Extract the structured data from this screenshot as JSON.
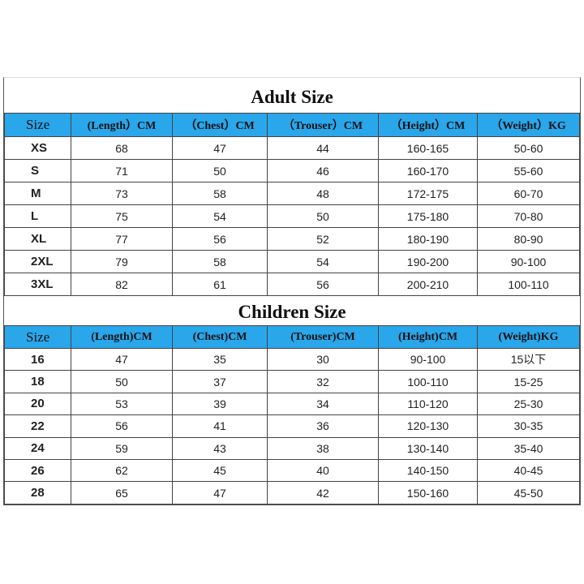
{
  "tables": [
    {
      "title": "Adult Size",
      "header": [
        "Size",
        "(Length）CM",
        "（Chest）CM",
        "（Trouser）CM",
        "（Height）CM",
        "（Weight）KG"
      ],
      "rows": [
        [
          "XS",
          "68",
          "47",
          "44",
          "160-165",
          "50-60"
        ],
        [
          "S",
          "71",
          "50",
          "46",
          "160-170",
          "55-60"
        ],
        [
          "M",
          "73",
          "58",
          "48",
          "172-175",
          "60-70"
        ],
        [
          "L",
          "75",
          "54",
          "50",
          "175-180",
          "70-80"
        ],
        [
          "XL",
          "77",
          "56",
          "52",
          "180-190",
          "80-90"
        ],
        [
          "2XL",
          "79",
          "58",
          "54",
          "190-200",
          "90-100"
        ],
        [
          "3XL",
          "82",
          "61",
          "56",
          "200-210",
          "100-110"
        ]
      ]
    },
    {
      "title": "Children Size",
      "header": [
        "Size",
        "(Length)CM",
        "(Chest)CM",
        "(Trouser)CM",
        "(Height)CM",
        "(Weight)KG"
      ],
      "rows": [
        [
          "16",
          "47",
          "35",
          "30",
          "90-100",
          "15以下"
        ],
        [
          "18",
          "50",
          "37",
          "32",
          "100-110",
          "15-25"
        ],
        [
          "20",
          "53",
          "39",
          "34",
          "110-120",
          "25-30"
        ],
        [
          "22",
          "56",
          "41",
          "36",
          "120-130",
          "30-35"
        ],
        [
          "24",
          "59",
          "43",
          "38",
          "130-140",
          "35-40"
        ],
        [
          "26",
          "62",
          "45",
          "40",
          "140-150",
          "40-45"
        ],
        [
          "28",
          "65",
          "47",
          "42",
          "150-160",
          "45-50"
        ]
      ]
    }
  ]
}
